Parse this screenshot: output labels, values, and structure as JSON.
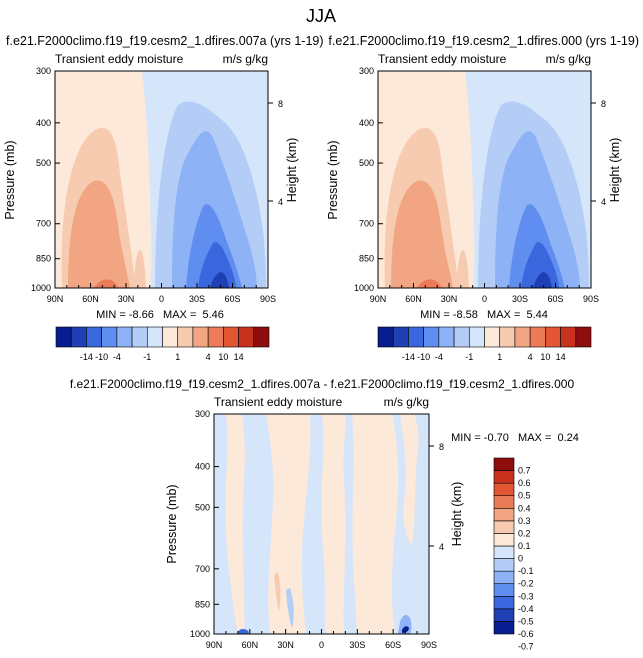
{
  "figure": {
    "title": "JJA",
    "bottom_title": "f.e21.F2000climo.f19_f19.cesm2_1.dfires.007a - f.e21.F2000climo.f19_f19.cesm2_1.dfires.000"
  },
  "chart_data": [
    {
      "type": "heatmap",
      "title": "f.e21.F2000climo.f19_f19.cesm2_1.dfires.007a (yrs 1-19)",
      "left_label": "Transient eddy moisture",
      "right_label": "m/s g/kg",
      "xlabel": "",
      "ylabel": "Pressure (mb)",
      "ylabel_right": "Height (km)",
      "x_ticks": [
        "90N",
        "60N",
        "30N",
        "0",
        "30S",
        "60S",
        "90S"
      ],
      "y_ticks": [
        "300",
        "400",
        "500",
        "700",
        "850",
        "1000"
      ],
      "height_ticks": [
        "8",
        "4"
      ],
      "stats": "MIN = -8.66   MAX =  5.46",
      "min": -8.66,
      "max": 5.46,
      "colorbar_labels": [
        "-14",
        "-10",
        "-4",
        "-1",
        "1",
        "4",
        "10",
        "14"
      ]
    },
    {
      "type": "heatmap",
      "title": "f.e21.F2000climo.f19_f19.cesm2_1.dfires.000 (yrs 1-19)",
      "left_label": "Transient eddy moisture",
      "right_label": "m/s g/kg",
      "xlabel": "",
      "ylabel": "Pressure (mb)",
      "ylabel_right": "Height (km)",
      "x_ticks": [
        "90N",
        "60N",
        "30N",
        "0",
        "30S",
        "60S",
        "90S"
      ],
      "y_ticks": [
        "300",
        "400",
        "500",
        "700",
        "850",
        "1000"
      ],
      "height_ticks": [
        "8",
        "4"
      ],
      "stats": "MIN = -8.58   MAX =  5.44",
      "min": -8.58,
      "max": 5.44,
      "colorbar_labels": [
        "-14",
        "-10",
        "-4",
        "-1",
        "1",
        "4",
        "10",
        "14"
      ]
    },
    {
      "type": "heatmap",
      "title": "f.e21.F2000climo.f19_f19.cesm2_1.dfires.007a - f.e21.F2000climo.f19_f19.cesm2_1.dfires.000",
      "left_label": "Transient eddy moisture",
      "right_label": "m/s g/kg",
      "xlabel": "",
      "ylabel": "Pressure (mb)",
      "ylabel_right": "Height (km)",
      "x_ticks": [
        "90N",
        "60N",
        "30N",
        "0",
        "30S",
        "60S",
        "90S"
      ],
      "y_ticks": [
        "300",
        "400",
        "500",
        "700",
        "850",
        "1000"
      ],
      "height_ticks": [
        "8",
        "4"
      ],
      "stats": "MIN = -0.70   MAX =  0.24",
      "min": -0.7,
      "max": 0.24,
      "colorbar_labels": [
        "0.7",
        "0.6",
        "0.5",
        "0.4",
        "0.3",
        "0.2",
        "0.1",
        "0",
        "-0.1",
        "-0.2",
        "-0.3",
        "-0.4",
        "-0.5",
        "-0.6",
        "-0.7"
      ]
    }
  ],
  "colors": {
    "c0": "#081d8f",
    "c1": "#1f3fb4",
    "c2": "#3a67de",
    "c3": "#5f8ef0",
    "c4": "#8db2f5",
    "c5": "#b3cdf6",
    "c6": "#d5e6fb",
    "c7": "#fde9d9",
    "c8": "#f7cbb0",
    "c9": "#f2a582",
    "c10": "#ec7c58",
    "c11": "#e35633",
    "c12": "#c8321d",
    "c13": "#8e0d0d"
  }
}
